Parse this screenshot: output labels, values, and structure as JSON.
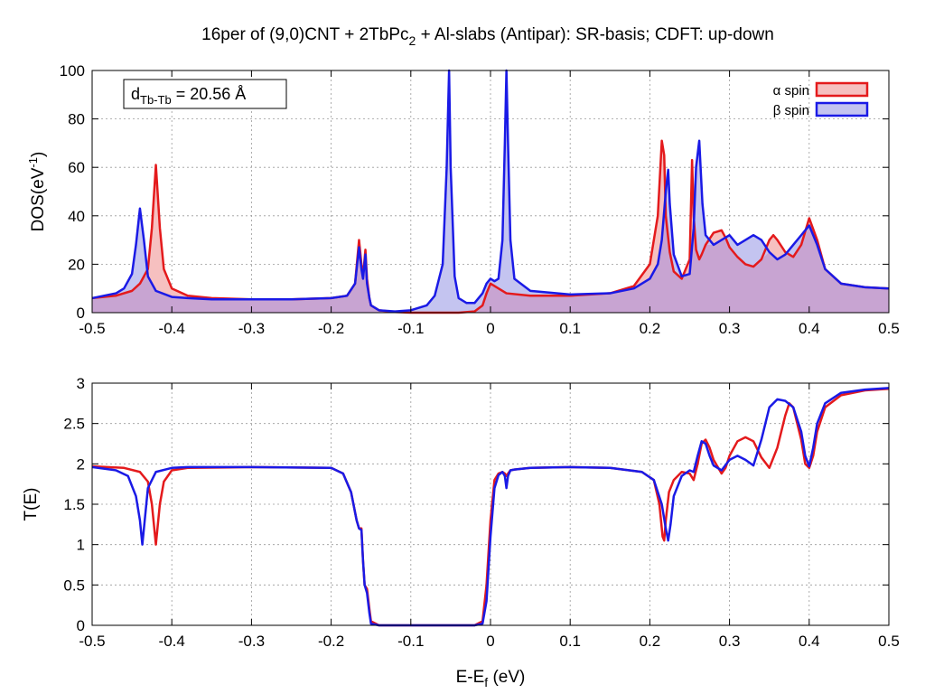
{
  "title": {
    "main": "16per of (9,0)CNT + 2TbPc",
    "sub": "2",
    "rest": " + Al-slabs (Antipar): SR-basis; CDFT: up-down"
  },
  "colors": {
    "alpha": "#e41a1c",
    "beta": "#1a1ae6",
    "alpha_fill": "#f6c0c0",
    "beta_fill": "#c4c4f0",
    "overlap_fill": "#c8a4d2"
  },
  "chart_data": [
    {
      "type": "area",
      "panel": "dos",
      "ylabel": {
        "main": "DOS(eV",
        "sup": "-1",
        "rest": ")"
      },
      "xlabel": "",
      "xlim": [
        -0.5,
        0.5
      ],
      "ylim": [
        0,
        100
      ],
      "xticks": [
        -0.5,
        -0.4,
        -0.3,
        -0.2,
        -0.1,
        0,
        0.1,
        0.2,
        0.3,
        0.4,
        0.5
      ],
      "xtick_labels": [
        "-0.5",
        "-0.4",
        "-0.3",
        "-0.2",
        "-0.1",
        "0",
        "0.1",
        "0.2",
        "0.3",
        "0.4",
        "0.5"
      ],
      "yticks": [
        0,
        20,
        40,
        60,
        80,
        100
      ],
      "ytick_labels": [
        "0",
        "20",
        "40",
        "60",
        "80",
        "100"
      ],
      "grid": true,
      "legend_position": "top-right",
      "annotation": {
        "main": "d",
        "sub": "Tb-Tb",
        "rest": " = 20.56 Å"
      },
      "series": [
        {
          "name": "α spin",
          "x": [
            -0.5,
            -0.47,
            -0.45,
            -0.44,
            -0.43,
            -0.425,
            -0.42,
            -0.415,
            -0.41,
            -0.4,
            -0.38,
            -0.35,
            -0.3,
            -0.25,
            -0.2,
            -0.18,
            -0.17,
            -0.165,
            -0.162,
            -0.16,
            -0.157,
            -0.155,
            -0.152,
            -0.15,
            -0.14,
            -0.12,
            -0.1,
            -0.08,
            -0.06,
            -0.05,
            -0.04,
            -0.02,
            -0.01,
            -0.005,
            0,
            0.01,
            0.02,
            0.05,
            0.1,
            0.15,
            0.18,
            0.2,
            0.21,
            0.215,
            0.218,
            0.22,
            0.225,
            0.23,
            0.24,
            0.25,
            0.253,
            0.255,
            0.258,
            0.262,
            0.265,
            0.27,
            0.28,
            0.29,
            0.295,
            0.3,
            0.31,
            0.32,
            0.33,
            0.34,
            0.35,
            0.355,
            0.36,
            0.37,
            0.38,
            0.39,
            0.4,
            0.41,
            0.42,
            0.44,
            0.47,
            0.5
          ],
          "y": [
            6,
            7,
            9,
            12,
            18,
            35,
            61,
            35,
            18,
            10,
            7,
            6,
            5.5,
            5.5,
            6,
            7,
            12,
            30,
            20,
            15,
            26,
            14,
            6,
            3,
            1,
            0.3,
            0,
            0,
            0,
            0,
            0,
            0.5,
            3,
            8,
            12,
            10,
            8,
            7,
            7,
            8,
            11,
            20,
            40,
            71,
            65,
            40,
            25,
            17,
            14,
            22,
            63,
            40,
            26,
            22,
            24,
            28,
            33,
            34,
            31,
            27,
            23,
            20,
            19,
            22,
            30,
            32,
            30,
            25,
            23,
            28,
            39,
            30,
            18,
            12,
            10.5,
            10
          ]
        },
        {
          "name": "β spin",
          "x": [
            -0.5,
            -0.47,
            -0.46,
            -0.45,
            -0.445,
            -0.44,
            -0.435,
            -0.43,
            -0.42,
            -0.4,
            -0.38,
            -0.35,
            -0.3,
            -0.25,
            -0.2,
            -0.18,
            -0.17,
            -0.165,
            -0.162,
            -0.16,
            -0.157,
            -0.155,
            -0.152,
            -0.15,
            -0.14,
            -0.12,
            -0.1,
            -0.08,
            -0.07,
            -0.06,
            -0.055,
            -0.052,
            -0.05,
            -0.045,
            -0.04,
            -0.03,
            -0.02,
            -0.01,
            -0.005,
            0,
            0.005,
            0.01,
            0.015,
            0.018,
            0.02,
            0.022,
            0.025,
            0.03,
            0.05,
            0.1,
            0.15,
            0.18,
            0.2,
            0.21,
            0.215,
            0.22,
            0.223,
            0.225,
            0.23,
            0.24,
            0.25,
            0.255,
            0.258,
            0.262,
            0.266,
            0.27,
            0.28,
            0.29,
            0.3,
            0.31,
            0.32,
            0.33,
            0.34,
            0.35,
            0.36,
            0.37,
            0.38,
            0.39,
            0.4,
            0.41,
            0.42,
            0.44,
            0.47,
            0.5
          ],
          "y": [
            6,
            8,
            10,
            16,
            28,
            43,
            30,
            15,
            9,
            6.5,
            6,
            5.5,
            5.5,
            5.5,
            6,
            7,
            12,
            27,
            18,
            14,
            24,
            12,
            6,
            3,
            1,
            0.5,
            1,
            3,
            7,
            20,
            60,
            100,
            60,
            15,
            6,
            4,
            4,
            8,
            12,
            14,
            13,
            14,
            30,
            70,
            100,
            70,
            30,
            14,
            9,
            7.5,
            8,
            10,
            14,
            20,
            30,
            50,
            59,
            45,
            24,
            15,
            16,
            35,
            60,
            71,
            45,
            32,
            28,
            30,
            32,
            28,
            30,
            32,
            30,
            25,
            22,
            24,
            28,
            32,
            36,
            28,
            18,
            12,
            10.5,
            10
          ]
        }
      ]
    },
    {
      "type": "line",
      "panel": "transmission",
      "ylabel": "T(E)",
      "xlabel": {
        "main": "E-E",
        "sub": "f",
        "rest": " (eV)"
      },
      "xlim": [
        -0.5,
        0.5
      ],
      "ylim": [
        0,
        3
      ],
      "xticks": [
        -0.5,
        -0.4,
        -0.3,
        -0.2,
        -0.1,
        0,
        0.1,
        0.2,
        0.3,
        0.4,
        0.5
      ],
      "xtick_labels": [
        "-0.5",
        "-0.4",
        "-0.3",
        "-0.2",
        "-0.1",
        "0",
        "0.1",
        "0.2",
        "0.3",
        "0.4",
        "0.5"
      ],
      "yticks": [
        0,
        0.5,
        1,
        1.5,
        2,
        2.5,
        3
      ],
      "ytick_labels": [
        "0",
        "0.5",
        "1",
        "1.5",
        "2",
        "2.5",
        "3"
      ],
      "grid": true,
      "series": [
        {
          "name": "α spin",
          "x": [
            -0.5,
            -0.46,
            -0.44,
            -0.43,
            -0.425,
            -0.42,
            -0.415,
            -0.41,
            -0.4,
            -0.38,
            -0.3,
            -0.2,
            -0.185,
            -0.175,
            -0.168,
            -0.165,
            -0.162,
            -0.16,
            -0.158,
            -0.155,
            -0.152,
            -0.15,
            -0.14,
            -0.1,
            -0.05,
            -0.02,
            -0.01,
            -0.005,
            0,
            0.005,
            0.01,
            0.015,
            0.018,
            0.02,
            0.022,
            0.025,
            0.03,
            0.05,
            0.1,
            0.15,
            0.19,
            0.205,
            0.212,
            0.216,
            0.218,
            0.22,
            0.224,
            0.23,
            0.24,
            0.25,
            0.255,
            0.26,
            0.265,
            0.27,
            0.275,
            0.28,
            0.29,
            0.295,
            0.3,
            0.31,
            0.32,
            0.33,
            0.34,
            0.35,
            0.36,
            0.37,
            0.375,
            0.38,
            0.39,
            0.395,
            0.4,
            0.405,
            0.41,
            0.42,
            0.44,
            0.47,
            0.5
          ],
          "y": [
            1.97,
            1.95,
            1.9,
            1.78,
            1.5,
            1.0,
            1.5,
            1.78,
            1.92,
            1.95,
            1.96,
            1.95,
            1.88,
            1.65,
            1.3,
            1.2,
            1.2,
            0.8,
            0.5,
            0.45,
            0.2,
            0.05,
            0.0,
            0.0,
            0.0,
            0.0,
            0.05,
            0.5,
            1.3,
            1.8,
            1.88,
            1.9,
            1.88,
            1.85,
            1.88,
            1.92,
            1.93,
            1.95,
            1.96,
            1.95,
            1.9,
            1.8,
            1.5,
            1.1,
            1.05,
            1.3,
            1.65,
            1.8,
            1.9,
            1.88,
            1.8,
            2.0,
            2.25,
            2.3,
            2.2,
            2.05,
            1.88,
            1.95,
            2.1,
            2.28,
            2.33,
            2.28,
            2.08,
            1.95,
            2.2,
            2.6,
            2.75,
            2.7,
            2.3,
            2.0,
            1.95,
            2.1,
            2.4,
            2.7,
            2.85,
            2.91,
            2.93
          ]
        },
        {
          "name": "β spin",
          "x": [
            -0.5,
            -0.47,
            -0.455,
            -0.445,
            -0.44,
            -0.437,
            -0.434,
            -0.43,
            -0.42,
            -0.4,
            -0.38,
            -0.3,
            -0.2,
            -0.185,
            -0.175,
            -0.168,
            -0.165,
            -0.162,
            -0.16,
            -0.158,
            -0.155,
            -0.152,
            -0.15,
            -0.14,
            -0.1,
            -0.05,
            -0.02,
            -0.01,
            -0.005,
            0,
            0.005,
            0.01,
            0.015,
            0.018,
            0.02,
            0.022,
            0.025,
            0.03,
            0.05,
            0.1,
            0.15,
            0.19,
            0.205,
            0.215,
            0.22,
            0.223,
            0.226,
            0.23,
            0.24,
            0.25,
            0.255,
            0.26,
            0.265,
            0.27,
            0.275,
            0.28,
            0.29,
            0.3,
            0.31,
            0.32,
            0.33,
            0.34,
            0.35,
            0.36,
            0.37,
            0.38,
            0.39,
            0.395,
            0.4,
            0.405,
            0.41,
            0.42,
            0.44,
            0.47,
            0.5
          ],
          "y": [
            1.96,
            1.92,
            1.85,
            1.6,
            1.3,
            1.0,
            1.3,
            1.7,
            1.9,
            1.95,
            1.96,
            1.96,
            1.95,
            1.88,
            1.65,
            1.3,
            1.2,
            1.18,
            0.8,
            0.5,
            0.4,
            0.15,
            0.02,
            0.0,
            0.0,
            0.0,
            0.0,
            0.02,
            0.3,
            1.1,
            1.7,
            1.86,
            1.9,
            1.85,
            1.7,
            1.85,
            1.92,
            1.93,
            1.95,
            1.96,
            1.95,
            1.9,
            1.8,
            1.5,
            1.2,
            1.05,
            1.25,
            1.6,
            1.85,
            1.92,
            1.9,
            2.1,
            2.28,
            2.25,
            2.1,
            1.98,
            1.92,
            2.05,
            2.1,
            2.05,
            1.98,
            2.3,
            2.7,
            2.8,
            2.78,
            2.7,
            2.4,
            2.1,
            1.97,
            2.2,
            2.5,
            2.75,
            2.88,
            2.92,
            2.94
          ]
        }
      ]
    }
  ]
}
